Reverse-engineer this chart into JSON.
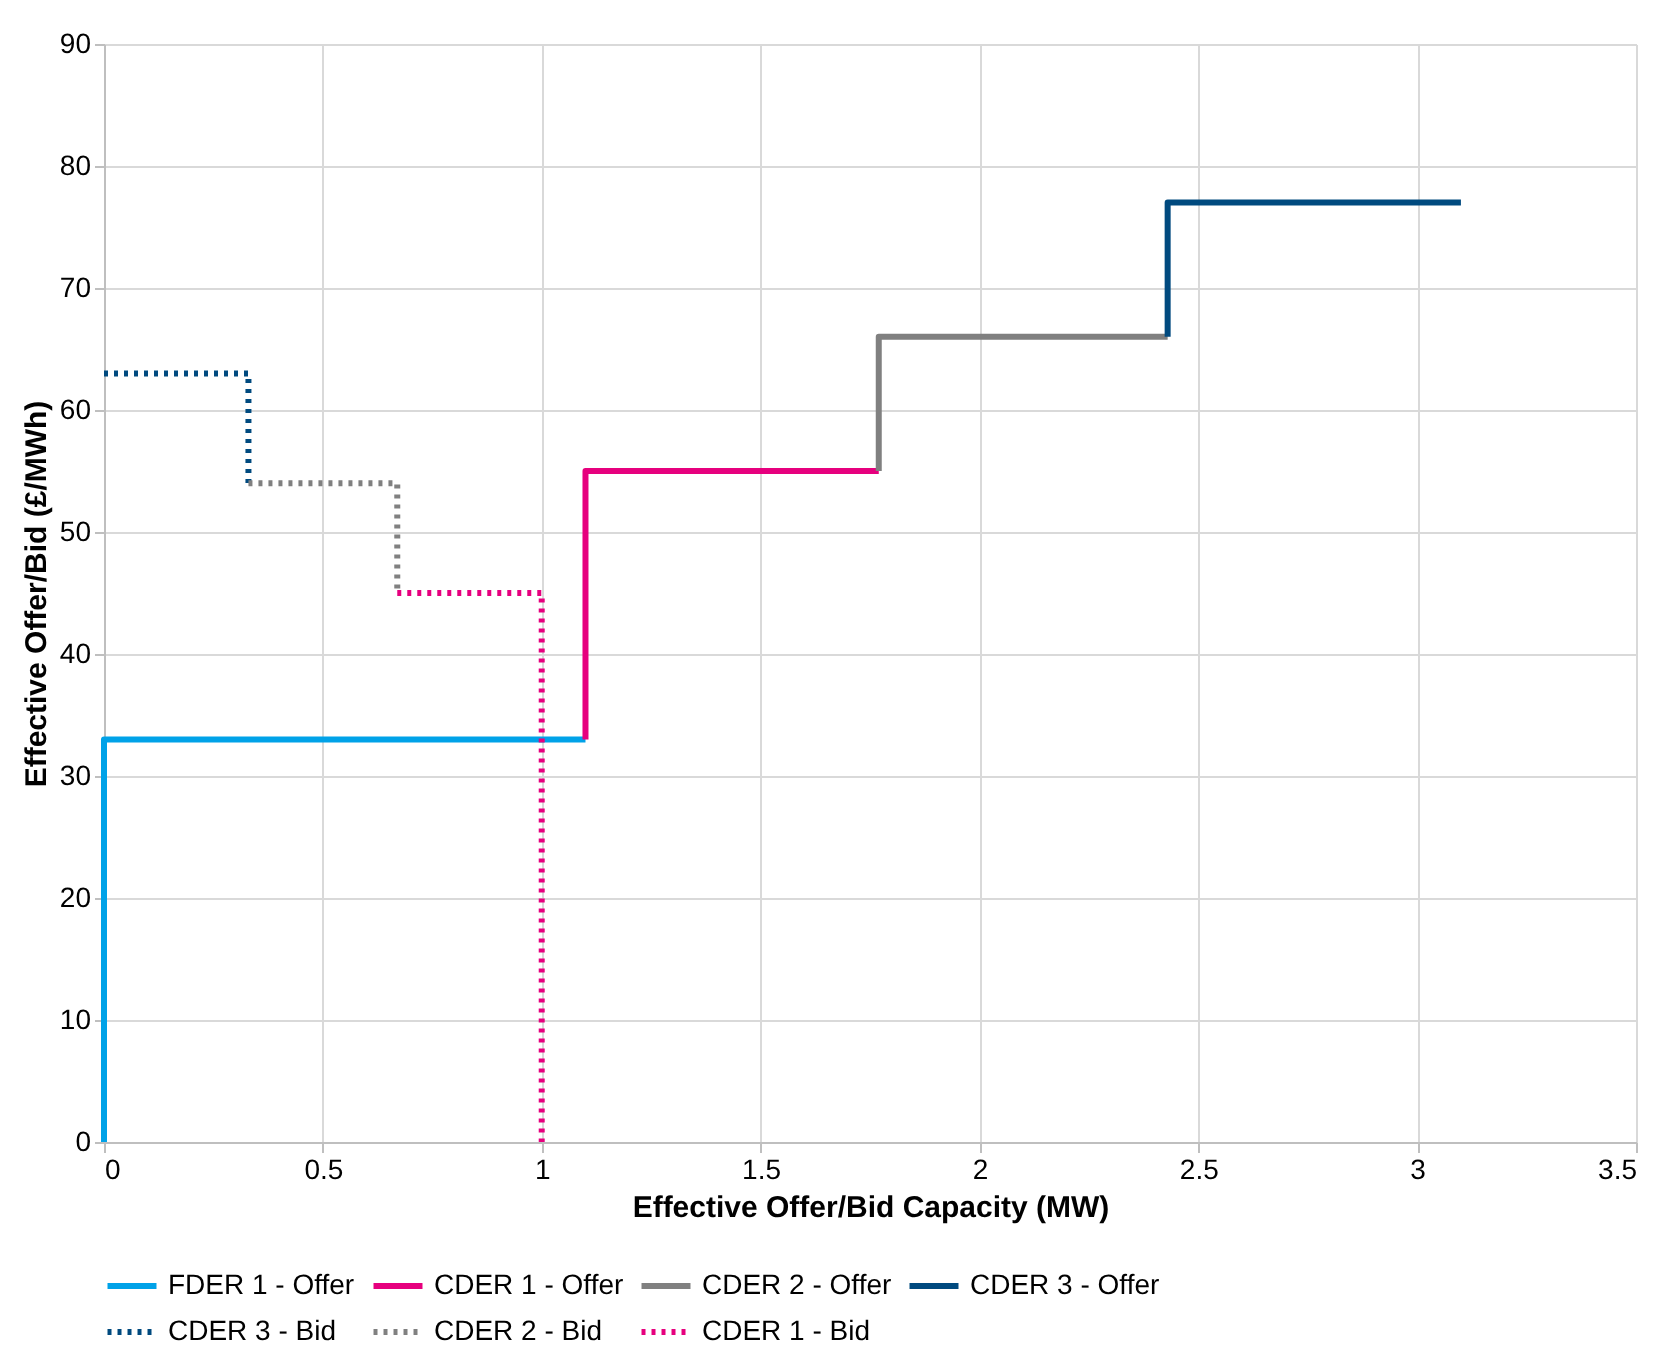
{
  "chart_data": {
    "type": "line",
    "xlabel": "Effective Offer/Bid Capacity  (MW)",
    "ylabel": "Effective Offer/Bid (£/MWh)",
    "xlim": [
      0,
      3.5
    ],
    "xticks": [
      0,
      0.5,
      1,
      1.5,
      2,
      2.5,
      3,
      3.5
    ],
    "ylim": [
      0,
      90
    ],
    "yticks": [
      0,
      10,
      20,
      30,
      40,
      50,
      60,
      70,
      80,
      90
    ],
    "grid": true,
    "legend": "bottom",
    "marker": "none",
    "series": [
      {
        "name": "FDER 1 - Offer",
        "color": "#00a2e8",
        "line_style": "solid",
        "x": [
          0,
          0,
          1.1
        ],
        "values": [
          0,
          33,
          33
        ]
      },
      {
        "name": "CDER 1 - Offer",
        "color": "#e6007e",
        "line_style": "solid",
        "x": [
          1.1,
          1.1,
          1.77
        ],
        "values": [
          33,
          55,
          55
        ]
      },
      {
        "name": "CDER 2 - Offer",
        "color": "#808080",
        "line_style": "solid",
        "x": [
          1.77,
          1.77,
          2.43
        ],
        "values": [
          55,
          66,
          66
        ]
      },
      {
        "name": "CDER 3 - Offer",
        "color": "#004a7f",
        "line_style": "solid",
        "x": [
          2.43,
          2.43,
          3.1
        ],
        "values": [
          66,
          77,
          77
        ]
      },
      {
        "name": "CDER 3 - Bid",
        "color": "#004a7f",
        "line_style": "dotted",
        "x": [
          0,
          0.33,
          0.33
        ],
        "values": [
          63,
          63,
          54
        ]
      },
      {
        "name": "CDER 2 - Bid",
        "color": "#808080",
        "line_style": "dotted",
        "x": [
          0.33,
          0.67,
          0.67
        ],
        "values": [
          54,
          54,
          45
        ]
      },
      {
        "name": "CDER 1 - Bid",
        "color": "#e6007e",
        "line_style": "dotted",
        "x": [
          0.67,
          1.0,
          1.0
        ],
        "values": [
          45,
          45,
          0
        ]
      }
    ]
  }
}
